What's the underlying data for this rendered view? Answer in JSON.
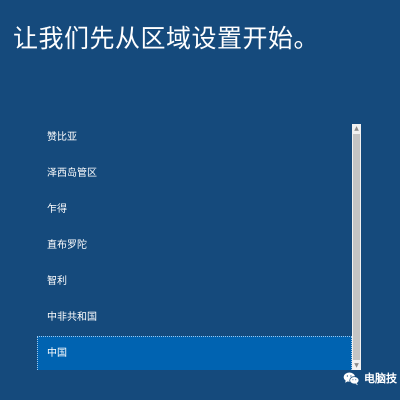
{
  "page": {
    "title": "让我们先从区域设置开始。"
  },
  "regions": {
    "items": [
      {
        "label": "赞比亚",
        "selected": false
      },
      {
        "label": "泽西岛管区",
        "selected": false
      },
      {
        "label": "乍得",
        "selected": false
      },
      {
        "label": "直布罗陀",
        "selected": false
      },
      {
        "label": "智利",
        "selected": false
      },
      {
        "label": "中非共和国",
        "selected": false
      },
      {
        "label": "中国",
        "selected": true
      }
    ]
  },
  "scrollbar": {
    "up_icon": "▲",
    "down_icon": "▼"
  },
  "watermark": {
    "icon": "wechat-icon",
    "text": "电脑技"
  },
  "colors": {
    "background": "#154a7c",
    "selection": "#0063b1",
    "text": "#ffffff",
    "scrollbar_track": "#f1f1f1",
    "scrollbar_thumb": "#c4c4c4"
  }
}
